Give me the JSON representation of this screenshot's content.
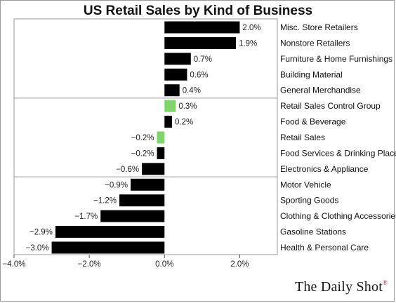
{
  "colors": {
    "bar_default": "#000000",
    "bar_highlight": "#7ed66a",
    "axis": "#555555",
    "group_line": "#9a9a9a"
  },
  "footer": {
    "brand": "The Daily Shot",
    "registered": "®"
  },
  "chart_data": {
    "type": "bar",
    "orientation": "horizontal",
    "title": "US Retail Sales by Kind of Business",
    "xlabel": "",
    "ylabel": "",
    "xlim": [
      -4.0,
      3.0
    ],
    "x_ticks": [
      -4.0,
      -2.0,
      0.0,
      2.0
    ],
    "x_tick_labels": [
      "-4.0%",
      "-2.0%",
      "0.0%",
      "2.0%"
    ],
    "grid": false,
    "category_label_position": "right",
    "group_separators_after": [
      4,
      9
    ],
    "categories": [
      "Misc. Store Retailers",
      "Nonstore Retailers",
      "Furniture & Home Furnishings",
      "Building Material",
      "General Merchandise",
      "Retail Sales Control Group",
      "Food & Beverage",
      "Retail Sales",
      "Food Services & Drinking Places",
      "Electronics & Appliance",
      "Motor Vehicle",
      "Sporting Goods",
      "Clothing & Clothing Accessories",
      "Gasoline Stations",
      "Health & Personal Care"
    ],
    "values": [
      2.0,
      1.9,
      0.7,
      0.6,
      0.4,
      0.3,
      0.2,
      -0.2,
      -0.2,
      -0.6,
      -0.9,
      -1.2,
      -1.7,
      -2.9,
      -3.0
    ],
    "data_labels": [
      "2.0%",
      "1.9%",
      "0.7%",
      "0.6%",
      "0.4%",
      "0.3%",
      "0.2%",
      "-0.2%",
      "-0.2%",
      "-0.6%",
      "-0.9%",
      "-1.2%",
      "-1.7%",
      "-2.9%",
      "-3.0%"
    ],
    "highlighted": [
      "Retail Sales Control Group",
      "Retail Sales"
    ]
  }
}
